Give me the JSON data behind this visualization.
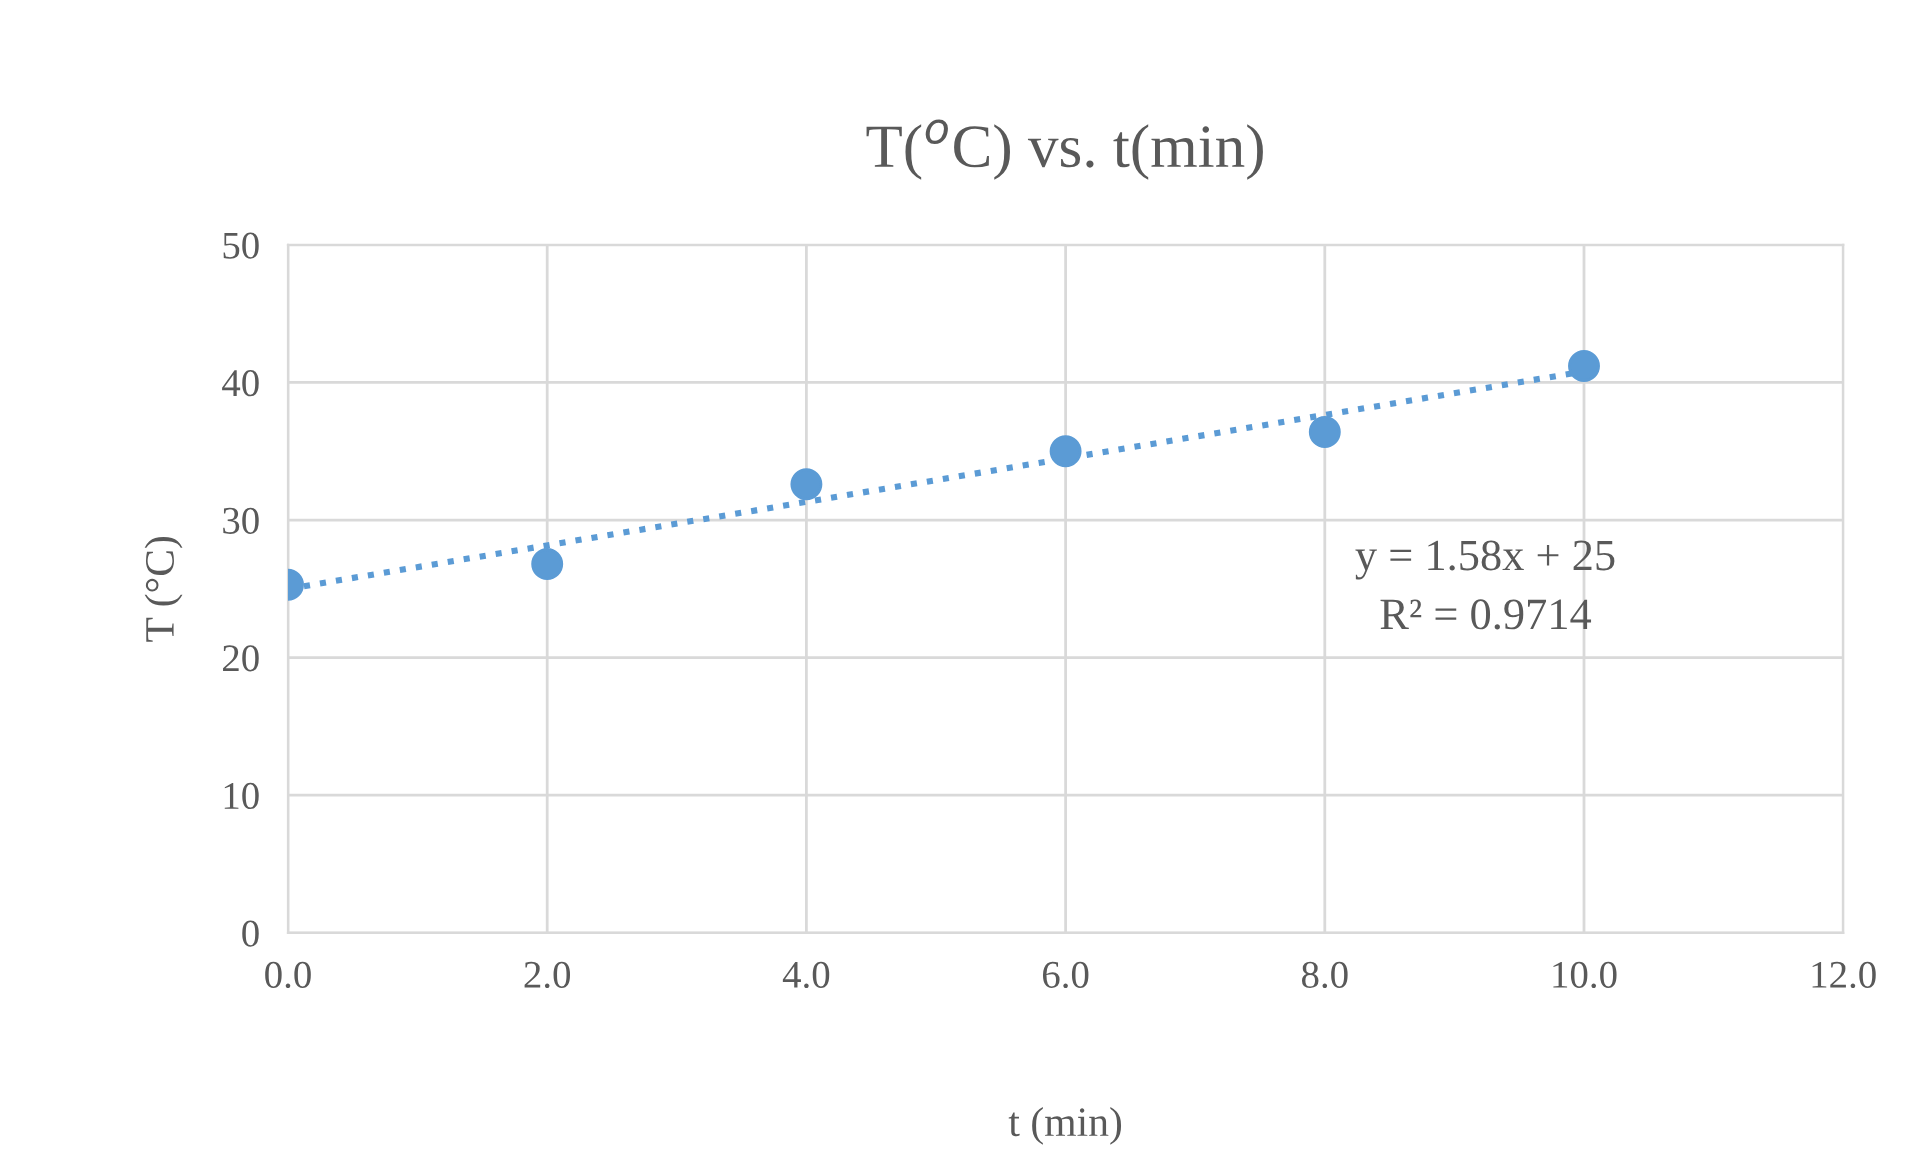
{
  "chart_data": {
    "type": "scatter",
    "title": "T($^{o}$C) vs. t(min)",
    "xlabel": "t (min)",
    "ylabel": "T (°C)",
    "x": [
      0,
      2,
      4,
      6,
      8,
      10
    ],
    "series": [
      {
        "color": "#5b9bd5",
        "values": [
          25.3,
          26.8,
          32.6,
          35.0,
          36.4,
          41.2
        ],
        "marker": "circle"
      },
      {
        "type": "line",
        "color": "#5b9bd5",
        "x": [
          0,
          10
        ],
        "values": [
          25,
          40.8
        ],
        "line_style": "dotted",
        "marker": "none"
      }
    ],
    "annotations": [
      "y = 1.58x + 25\nR² = 0.9714"
    ],
    "xlim": [
      0,
      12
    ],
    "ylim": [
      0,
      50
    ],
    "xticks": [
      {
        "value": 0,
        "label": "0.0"
      },
      {
        "value": 2,
        "label": "2.0"
      },
      {
        "value": 4,
        "label": "4.0"
      },
      {
        "value": 6,
        "label": "6.0"
      },
      {
        "value": 8,
        "label": "8.0"
      },
      {
        "value": 10,
        "label": "10.0"
      },
      {
        "value": 12,
        "label": "12.0"
      }
    ],
    "yticks": [
      0,
      10,
      20,
      30,
      40,
      50
    ],
    "grid": true,
    "legend": false
  }
}
